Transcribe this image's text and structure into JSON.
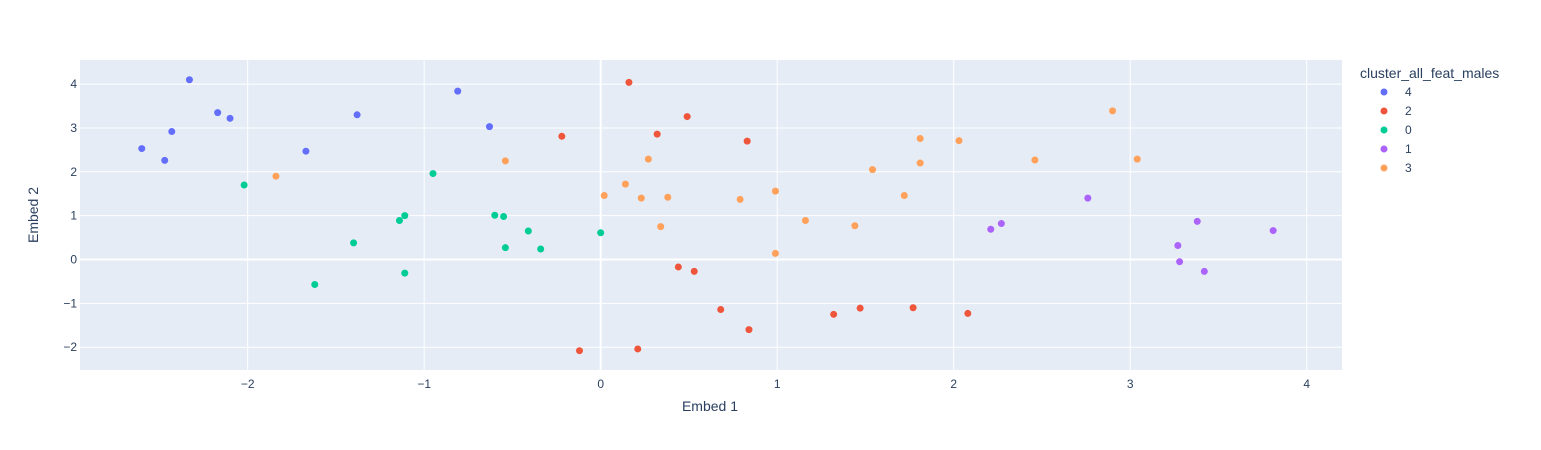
{
  "chart_data": {
    "type": "scatter",
    "xlabel": "Embed 1",
    "ylabel": "Embed 2",
    "xlim": [
      -2.95,
      4.2
    ],
    "ylim": [
      -2.52,
      4.55
    ],
    "x_ticks": [
      -2,
      -1,
      0,
      1,
      2,
      3,
      4
    ],
    "y_ticks": [
      -2,
      -1,
      0,
      1,
      2,
      3,
      4
    ],
    "x_tick_labels": [
      "−2",
      "−1",
      "0",
      "1",
      "2",
      "3",
      "4"
    ],
    "y_tick_labels": [
      "−2",
      "−1",
      "0",
      "1",
      "2",
      "3",
      "4"
    ],
    "grid": true,
    "legend_title": "cluster_all_feat_males",
    "legend_position": "top-right",
    "series": [
      {
        "name": "4",
        "color": "#636efa",
        "points": [
          [
            -2.33,
            4.1
          ],
          [
            -2.17,
            3.35
          ],
          [
            -2.1,
            3.22
          ],
          [
            -2.43,
            2.92
          ],
          [
            -2.6,
            2.53
          ],
          [
            -2.47,
            2.26
          ],
          [
            -1.38,
            3.3
          ],
          [
            -1.67,
            2.47
          ],
          [
            -0.81,
            3.84
          ],
          [
            -0.63,
            3.03
          ]
        ]
      },
      {
        "name": "2",
        "color": "#EF553B",
        "points": [
          [
            0.16,
            4.04
          ],
          [
            0.49,
            3.26
          ],
          [
            0.32,
            2.86
          ],
          [
            -0.22,
            2.81
          ],
          [
            0.83,
            2.7
          ],
          [
            0.44,
            -0.17
          ],
          [
            0.53,
            -0.27
          ],
          [
            0.68,
            -1.14
          ],
          [
            0.84,
            -1.6
          ],
          [
            1.32,
            -1.25
          ],
          [
            1.47,
            -1.11
          ],
          [
            1.77,
            -1.1
          ],
          [
            2.08,
            -1.23
          ],
          [
            -0.12,
            -2.08
          ],
          [
            0.21,
            -2.04
          ]
        ]
      },
      {
        "name": "0",
        "color": "#00cc96",
        "points": [
          [
            -2.02,
            1.7
          ],
          [
            -0.95,
            1.96
          ],
          [
            -1.11,
            1.0
          ],
          [
            -1.14,
            0.89
          ],
          [
            -0.6,
            1.01
          ],
          [
            -0.55,
            0.98
          ],
          [
            -1.4,
            0.38
          ],
          [
            -0.41,
            0.65
          ],
          [
            -0.54,
            0.27
          ],
          [
            -0.34,
            0.24
          ],
          [
            0.0,
            0.61
          ],
          [
            -1.11,
            -0.31
          ],
          [
            -1.62,
            -0.57
          ]
        ]
      },
      {
        "name": "1",
        "color": "#ab63fa",
        "points": [
          [
            2.76,
            1.4
          ],
          [
            2.21,
            0.69
          ],
          [
            2.27,
            0.82
          ],
          [
            3.38,
            0.87
          ],
          [
            3.81,
            0.66
          ],
          [
            3.27,
            0.32
          ],
          [
            3.28,
            -0.05
          ],
          [
            3.42,
            -0.27
          ]
        ]
      },
      {
        "name": "3",
        "color": "#FFA15A",
        "points": [
          [
            -1.84,
            1.9
          ],
          [
            -0.54,
            2.25
          ],
          [
            0.27,
            2.29
          ],
          [
            0.02,
            1.46
          ],
          [
            0.14,
            1.72
          ],
          [
            0.23,
            1.4
          ],
          [
            0.38,
            1.42
          ],
          [
            0.34,
            0.75
          ],
          [
            0.79,
            1.37
          ],
          [
            0.99,
            1.56
          ],
          [
            0.99,
            0.14
          ],
          [
            1.16,
            0.89
          ],
          [
            1.44,
            0.77
          ],
          [
            1.54,
            2.05
          ],
          [
            1.72,
            1.46
          ],
          [
            1.81,
            2.76
          ],
          [
            1.81,
            2.2
          ],
          [
            2.03,
            2.71
          ],
          [
            2.46,
            2.27
          ],
          [
            2.9,
            3.39
          ],
          [
            3.04,
            2.29
          ]
        ]
      }
    ]
  }
}
